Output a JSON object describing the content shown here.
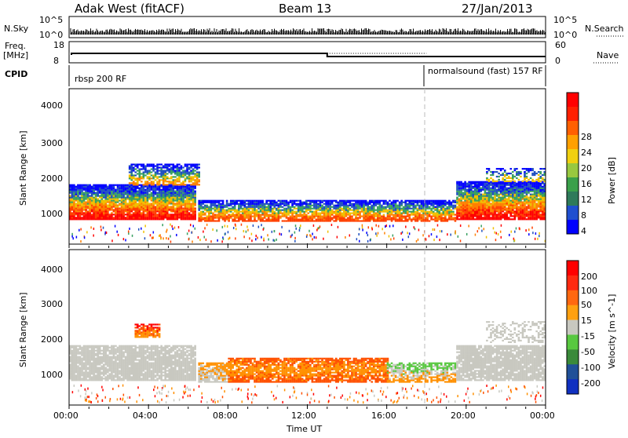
{
  "header": {
    "station": "Adak West (fitACF)",
    "beam": "Beam 13",
    "date": "27/Jan/2013"
  },
  "strip": {
    "nsky_label": "N.Sky",
    "nsearch_label": "N.Search",
    "nsky_ticks": [
      "10^5",
      "10^0"
    ],
    "nsearch_ticks": [
      "10^5",
      "10^0"
    ],
    "freq_label": "Freq.",
    "freq_unit": "[MHz]",
    "freq_ticks": [
      "18",
      "8"
    ],
    "nave_label": "Nave",
    "nave_ticks": [
      "60",
      "0"
    ],
    "cpid_label": "CPID",
    "cpid_segments": [
      {
        "name": "rbsp 200 RF",
        "start_hour": 0
      },
      {
        "name": "normalsound (fast) 157 RF",
        "start_hour": 18
      }
    ]
  },
  "chart_data": [
    {
      "type": "heatmap",
      "title": "",
      "ylabel": "Slant Range [km]",
      "ylim": [
        0,
        4500
      ],
      "yticks": [
        "1000",
        "2000",
        "3000",
        "4000"
      ],
      "colorbar_label": "Power [dB]",
      "colorbar_ticks": [
        "28",
        "24",
        "20",
        "16",
        "12",
        "8",
        "4"
      ],
      "colorbar_colors": [
        "#0000ff",
        "#1f4fd0",
        "#2e7a5a",
        "#3aa04a",
        "#98c840",
        "#f0d010",
        "#ffa000",
        "#ff6000",
        "#ff2000",
        "#ff0000"
      ]
    },
    {
      "type": "heatmap",
      "title": "",
      "ylabel": "Slant Range [km]",
      "ylim": [
        0,
        4500
      ],
      "yticks": [
        "1000",
        "2000",
        "3000",
        "4000"
      ],
      "colorbar_label": "Velocity [m s^-1]",
      "colorbar_ticks": [
        "200",
        "100",
        "50",
        "15",
        "-15",
        "-50",
        "-100",
        "-200"
      ],
      "colorbar_colors": [
        "#1030c0",
        "#205098",
        "#3a8a3a",
        "#58c840",
        "#c8c8c0",
        "#ffa010",
        "#ff6810",
        "#ff2a10",
        "#ff0000"
      ]
    }
  ],
  "xaxis": {
    "label": "Time UT",
    "ticks": [
      "00:00",
      "04:00",
      "08:00",
      "12:00",
      "16:00",
      "20:00",
      "00:00"
    ],
    "range_hours": [
      0,
      24
    ]
  },
  "colors": {
    "power_band": [
      "#ff0000",
      "#ff4000",
      "#ff8000",
      "#f0c000",
      "#38a060",
      "#2050c0",
      "#0000ff"
    ],
    "velocity_band": [
      "#c8c8c0",
      "#ff9000",
      "#ff5000",
      "#ff0000"
    ],
    "sound_marker": "#bbbbbb"
  }
}
